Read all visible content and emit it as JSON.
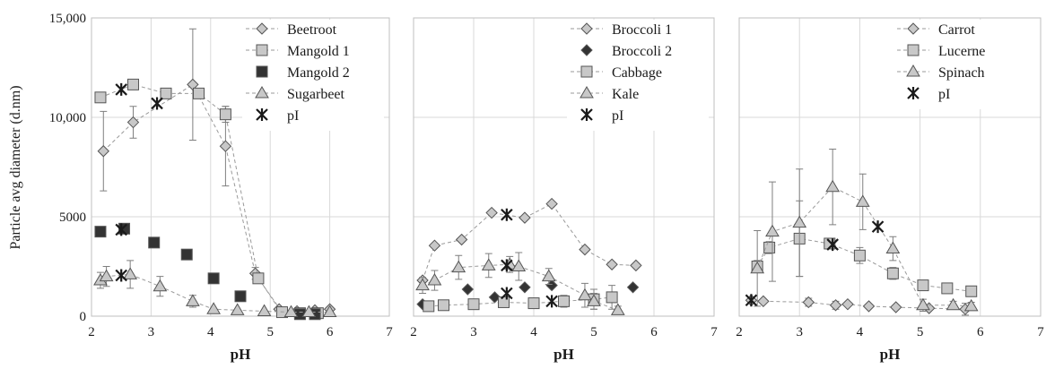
{
  "figure": {
    "ylabel": "Particle avg diameter (d.nm)",
    "colors": {
      "grid": "#d9d9d9",
      "axis": "#bfbfbf",
      "line": "#9a9a9a",
      "error": "#7f7f7f",
      "marker_light": "#c8c8c8",
      "marker_dark": "#333333",
      "marker_stroke": "#555555",
      "pI": "#1a1a1a"
    }
  },
  "chart_data": [
    {
      "type": "scatter",
      "panel": "left",
      "xlabel": "pH",
      "ylabel": "Particle avg diameter (d.nm)",
      "xlim": [
        2,
        7
      ],
      "ylim": [
        0,
        15000
      ],
      "xticks": [
        "2",
        "3",
        "4",
        "5",
        "6",
        "7"
      ],
      "yticks": [
        "0",
        "5000",
        "10,000",
        "15,000"
      ],
      "grid": true,
      "legend_position": "top-right",
      "series": [
        {
          "name": "Beetroot",
          "marker": "diamond",
          "fill": "light",
          "connect": true,
          "x": [
            2.2,
            2.7,
            3.7,
            4.25,
            4.75,
            5.15,
            5.45,
            5.75,
            6.0
          ],
          "y": [
            8300,
            9750,
            11650,
            8550,
            2150,
            350,
            250,
            300,
            350
          ],
          "err": [
            2000,
            800,
            2800,
            2000,
            300,
            100,
            50,
            100,
            100
          ]
        },
        {
          "name": "Mangold 1",
          "marker": "square",
          "fill": "light",
          "connect": true,
          "x": [
            2.15,
            2.7,
            3.25,
            3.8,
            4.25,
            4.8,
            5.2,
            5.5,
            5.8
          ],
          "y": [
            11000,
            11650,
            11200,
            11200,
            10150,
            1900,
            200,
            150,
            150
          ],
          "err": [
            0,
            0,
            0,
            0,
            400,
            0,
            0,
            0,
            0
          ]
        },
        {
          "name": "Mangold 2",
          "marker": "square",
          "fill": "dark",
          "connect": false,
          "x": [
            2.15,
            2.55,
            3.05,
            3.6,
            4.05,
            4.5,
            5.5,
            5.75
          ],
          "y": [
            4250,
            4400,
            3700,
            3100,
            1900,
            1000,
            100,
            100
          ],
          "err": [
            0,
            0,
            0,
            0,
            0,
            0,
            0,
            0
          ]
        },
        {
          "name": "Sugarbeet",
          "marker": "triangle",
          "fill": "light",
          "connect": true,
          "x": [
            2.15,
            2.25,
            2.65,
            3.15,
            3.7,
            4.05,
            4.45,
            4.9,
            5.35,
            5.65,
            6.0
          ],
          "y": [
            1800,
            2000,
            2100,
            1500,
            750,
            350,
            300,
            250,
            200,
            200,
            200
          ],
          "err": [
            400,
            500,
            700,
            500,
            300,
            0,
            0,
            0,
            0,
            0,
            0
          ]
        },
        {
          "name": "pI",
          "marker": "star",
          "fill": "dark",
          "connect": false,
          "x": [
            2.5,
            2.5,
            2.5,
            3.1
          ],
          "y": [
            11400,
            4350,
            2050,
            10700
          ],
          "err": [
            0,
            0,
            0,
            0
          ]
        }
      ]
    },
    {
      "type": "scatter",
      "panel": "middle",
      "xlabel": "pH",
      "xlim": [
        2,
        7
      ],
      "ylim": [
        0,
        15000
      ],
      "xticks": [
        "2",
        "3",
        "4",
        "5",
        "6",
        "7"
      ],
      "grid": true,
      "legend_position": "top-right",
      "series": [
        {
          "name": "Broccoli 1",
          "marker": "diamond",
          "fill": "light",
          "connect": true,
          "x": [
            2.15,
            2.35,
            2.8,
            3.3,
            3.85,
            4.3,
            4.85,
            5.3,
            5.7
          ],
          "y": [
            1800,
            3550,
            3850,
            5200,
            4950,
            5650,
            3350,
            2600,
            2550
          ],
          "err": [
            0,
            0,
            0,
            0,
            0,
            0,
            0,
            0,
            0
          ]
        },
        {
          "name": "Broccoli 2",
          "marker": "diamond",
          "fill": "dark",
          "connect": false,
          "x": [
            2.15,
            2.9,
            3.35,
            3.85,
            4.3,
            5.65
          ],
          "y": [
            600,
            1350,
            950,
            1450,
            1550,
            1450
          ],
          "err": [
            0,
            0,
            0,
            0,
            0,
            0
          ]
        },
        {
          "name": "Cabbage",
          "marker": "square",
          "fill": "light",
          "connect": true,
          "x": [
            2.25,
            2.5,
            3.0,
            3.5,
            4.0,
            4.5,
            5.0,
            5.3
          ],
          "y": [
            500,
            550,
            600,
            700,
            650,
            750,
            850,
            950
          ],
          "err": [
            0,
            0,
            0,
            200,
            200,
            300,
            500,
            600
          ]
        },
        {
          "name": "Kale",
          "marker": "triangle",
          "fill": "light",
          "connect": true,
          "x": [
            2.15,
            2.35,
            2.75,
            3.25,
            3.6,
            3.75,
            4.25,
            4.85,
            5.0,
            5.4
          ],
          "y": [
            1550,
            1800,
            2450,
            2550,
            2600,
            2500,
            2000,
            1050,
            750,
            300
          ],
          "err": [
            400,
            500,
            600,
            600,
            400,
            700,
            400,
            600,
            400,
            200
          ]
        },
        {
          "name": "pI",
          "marker": "star",
          "fill": "dark",
          "connect": false,
          "x": [
            3.55,
            3.55,
            3.55,
            4.3
          ],
          "y": [
            5100,
            2550,
            1150,
            750
          ],
          "err": [
            0,
            0,
            0,
            0
          ]
        }
      ]
    },
    {
      "type": "scatter",
      "panel": "right",
      "xlabel": "pH",
      "xlim": [
        2,
        7
      ],
      "ylim": [
        0,
        15000
      ],
      "xticks": [
        "2",
        "3",
        "4",
        "5",
        "6",
        "7"
      ],
      "grid": true,
      "legend_position": "top-right",
      "series": [
        {
          "name": "Carrot",
          "marker": "diamond",
          "fill": "light",
          "connect": true,
          "x": [
            2.2,
            2.4,
            3.15,
            3.6,
            3.8,
            4.15,
            4.6,
            5.15,
            5.75
          ],
          "y": [
            800,
            750,
            700,
            550,
            600,
            500,
            450,
            400,
            350
          ],
          "err": [
            0,
            0,
            200,
            200,
            0,
            0,
            0,
            0,
            300
          ]
        },
        {
          "name": "Lucerne",
          "marker": "square",
          "fill": "light",
          "connect": true,
          "x": [
            2.3,
            2.5,
            3.0,
            3.5,
            4.0,
            4.55,
            5.05,
            5.45,
            5.85
          ],
          "y": [
            2500,
            3450,
            3900,
            3650,
            3050,
            2150,
            1550,
            1400,
            1250
          ],
          "err": [
            300,
            300,
            1900,
            0,
            400,
            300,
            0,
            0,
            0
          ]
        },
        {
          "name": "Spinach",
          "marker": "triangle",
          "fill": "light",
          "connect": true,
          "x": [
            2.3,
            2.55,
            3.0,
            3.55,
            4.05,
            4.55,
            5.05,
            5.55,
            5.85
          ],
          "y": [
            2400,
            4250,
            4700,
            6500,
            5750,
            3400,
            550,
            550,
            500
          ],
          "err": [
            1900,
            2500,
            2700,
            1900,
            1400,
            600,
            300,
            200,
            200
          ]
        },
        {
          "name": "pI",
          "marker": "star",
          "fill": "dark",
          "connect": false,
          "x": [
            2.2,
            3.55,
            4.3
          ],
          "y": [
            800,
            3600,
            4500
          ],
          "err": [
            0,
            0,
            0
          ]
        }
      ]
    }
  ]
}
